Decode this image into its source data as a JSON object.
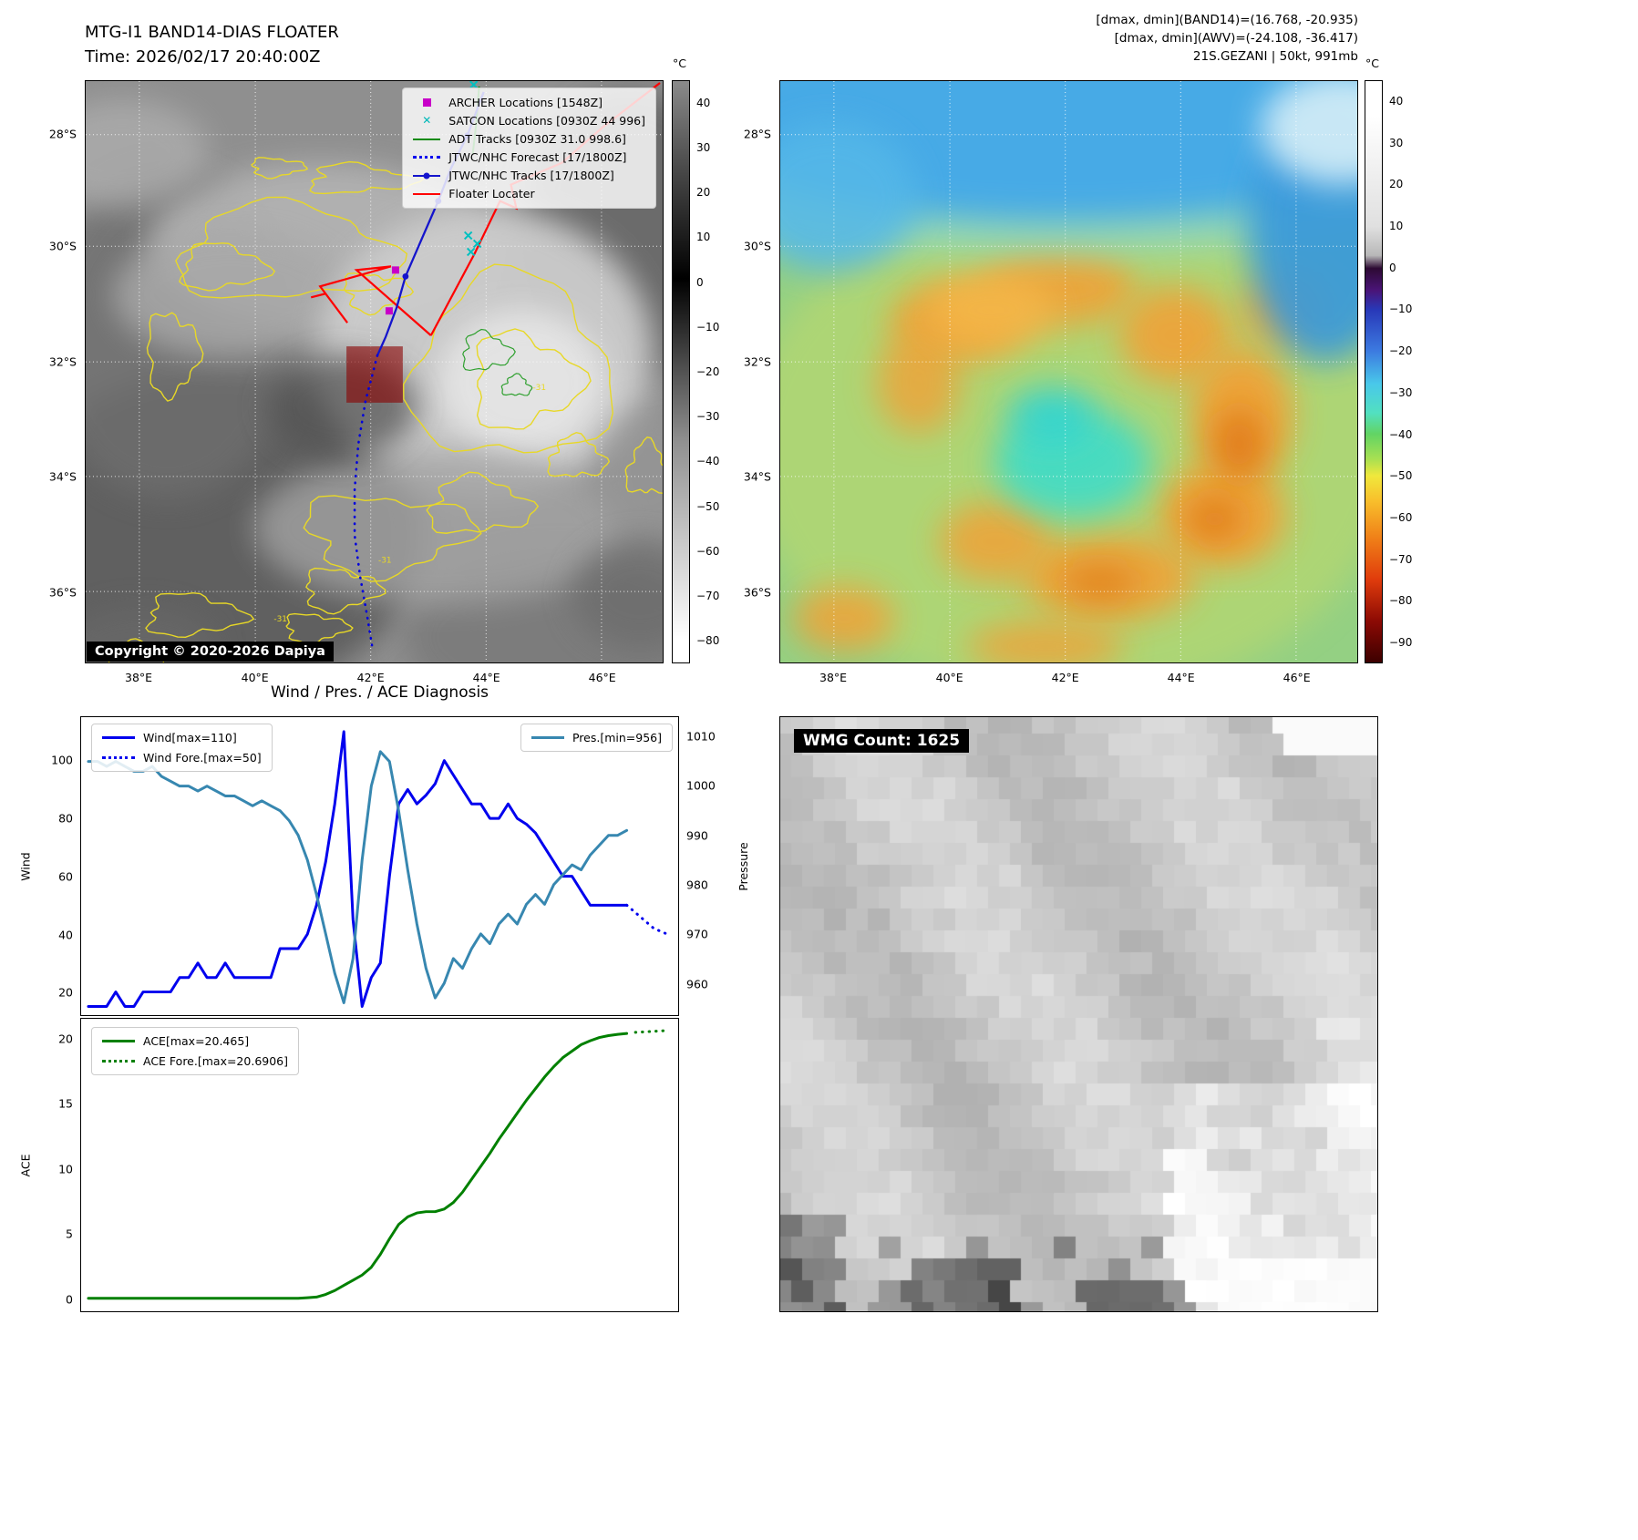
{
  "band14": {
    "title": "MTG-I1 BAND14-DIAS FLOATER",
    "time_line": "Time: 2026/02/17 20:40:00Z",
    "copyright": "Copyright © 2020-2026 Dapiya",
    "contour_label": "-31",
    "legend": [
      {
        "label": "ARCHER Locations [1548Z]",
        "marker": "square",
        "color": "#c800c8"
      },
      {
        "label": "SATCON Locations [0930Z 44 996]",
        "marker": "x",
        "color": "#00b8b8"
      },
      {
        "label": "ADT Tracks [0930Z 31.0 998.6]",
        "marker": "line",
        "color": "#0a8a0a"
      },
      {
        "label": "JTWC/NHC Forecast [17/1800Z]",
        "marker": "dotted",
        "color": "#0000ee"
      },
      {
        "label": "JTWC/NHC Tracks [17/1800Z]",
        "marker": "line-dot",
        "color": "#1414cc"
      },
      {
        "label": "Floater Locater",
        "marker": "line",
        "color": "#ff0000"
      }
    ],
    "lat_ticks": [
      "28°S",
      "30°S",
      "32°S",
      "34°S",
      "36°S"
    ],
    "lon_ticks": [
      "38°E",
      "40°E",
      "42°E",
      "44°E",
      "46°E"
    ],
    "colorbar": {
      "unit": "°C",
      "ticks": [
        40,
        30,
        20,
        10,
        0,
        -10,
        -20,
        -30,
        -40,
        -50,
        -60,
        -70,
        -80
      ]
    }
  },
  "awv": {
    "header_lines": [
      "[dmax, dmin](BAND14)=(16.768, -20.935)",
      "[dmax, dmin](AWV)=(-24.108, -36.417)",
      "21S.GEZANI | 50kt, 991mb"
    ],
    "lat_ticks": [
      "28°S",
      "30°S",
      "32°S",
      "34°S",
      "36°S"
    ],
    "lon_ticks": [
      "38°E",
      "40°E",
      "42°E",
      "44°E",
      "46°E"
    ],
    "colorbar": {
      "unit": "°C",
      "ticks": [
        40,
        30,
        20,
        10,
        0,
        -10,
        -20,
        -30,
        -40,
        -50,
        -60,
        -70,
        -80,
        -90
      ]
    }
  },
  "diagnosis": {
    "title": "Wind / Pres. / ACE Diagnosis"
  },
  "wmg": {
    "count_label": "WMG Count: 1625"
  },
  "chart_data": [
    {
      "type": "line",
      "title": "Wind / Pres. / ACE Diagnosis (wind & pressure panel)",
      "ylabel_left": "Wind",
      "ylabel_right": "Pressure",
      "ylim_left": [
        12,
        115
      ],
      "ylim_right": [
        953.5,
        1014
      ],
      "yticks_left": [
        20,
        40,
        60,
        80,
        100
      ],
      "yticks_right": [
        960,
        970,
        980,
        990,
        1000,
        1010
      ],
      "legend_position": "upper left / upper right",
      "grid": false,
      "series": [
        {
          "name": "Wind[max=110]",
          "color": "#0000ee",
          "style": "solid",
          "axis": "left",
          "x0": 0,
          "x1": 0.93,
          "values": [
            15,
            15,
            15,
            20,
            15,
            15,
            20,
            20,
            20,
            20,
            25,
            25,
            30,
            25,
            25,
            30,
            25,
            25,
            25,
            25,
            25,
            35,
            35,
            35,
            40,
            50,
            65,
            85,
            110,
            45,
            15,
            25,
            30,
            60,
            85,
            90,
            85,
            88,
            92,
            100,
            95,
            90,
            85,
            85,
            80,
            80,
            85,
            80,
            78,
            75,
            70,
            65,
            60,
            60,
            55,
            50,
            50,
            50,
            50,
            50
          ]
        },
        {
          "name": "Wind Fore.[max=50]",
          "color": "#0000ee",
          "style": "dotted",
          "axis": "left",
          "x0": 0.93,
          "x1": 1.0,
          "values": [
            50,
            46,
            42,
            40
          ]
        },
        {
          "name": "Pres.[min=956]",
          "color": "#3787b0",
          "style": "solid",
          "axis": "right",
          "x0": 0,
          "x1": 0.93,
          "values": [
            1005,
            1005,
            1004,
            1005,
            1004,
            1003,
            1003,
            1004,
            1002,
            1001,
            1000,
            1000,
            999,
            1000,
            999,
            998,
            998,
            997,
            996,
            997,
            996,
            995,
            993,
            990,
            985,
            978,
            970,
            962,
            956,
            965,
            985,
            1000,
            1007,
            1005,
            995,
            983,
            972,
            963,
            957,
            960,
            965,
            963,
            967,
            970,
            968,
            972,
            974,
            972,
            976,
            978,
            976,
            980,
            982,
            984,
            983,
            986,
            988,
            990,
            990,
            991
          ]
        }
      ]
    },
    {
      "type": "line",
      "title": "ACE panel",
      "ylabel": "ACE",
      "ylim": [
        -1,
        21.6
      ],
      "yticks": [
        0,
        5,
        10,
        15,
        20
      ],
      "legend_position": "upper left",
      "grid": false,
      "series": [
        {
          "name": "ACE[max=20.465]",
          "color": "#008000",
          "style": "solid",
          "x0": 0,
          "x1": 0.93,
          "values": [
            0,
            0,
            0,
            0,
            0,
            0,
            0,
            0,
            0,
            0,
            0,
            0,
            0,
            0,
            0,
            0,
            0,
            0,
            0,
            0,
            0,
            0,
            0,
            0,
            0.05,
            0.1,
            0.3,
            0.6,
            1,
            1.4,
            1.8,
            2.4,
            3.4,
            4.6,
            5.7,
            6.3,
            6.6,
            6.7,
            6.7,
            6.9,
            7.4,
            8.2,
            9.2,
            10.2,
            11.2,
            12.3,
            13.3,
            14.3,
            15.3,
            16.2,
            17.1,
            17.9,
            18.6,
            19.1,
            19.6,
            19.9,
            20.15,
            20.3,
            20.4,
            20.465
          ]
        },
        {
          "name": "ACE Fore.[max=20.6906]",
          "color": "#008000",
          "style": "dotted",
          "x0": 0.945,
          "x1": 1.0,
          "values": [
            20.55,
            20.62,
            20.6906
          ]
        }
      ]
    }
  ]
}
